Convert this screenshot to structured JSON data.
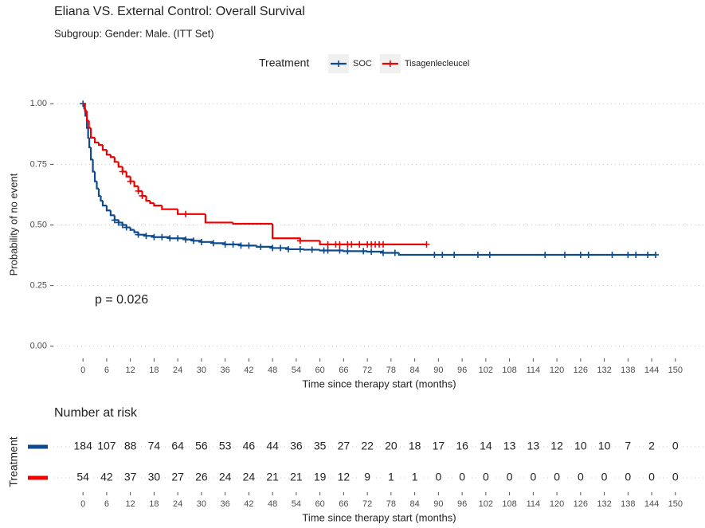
{
  "chart_data": {
    "type": "km",
    "title": "Eliana VS. External Control: Overall Survival",
    "subtitle": "Subgroup: Gender: Male. (ITT Set)",
    "x_label": "Time since therapy start (months)",
    "y_label": "Probability of no event",
    "legend_title": "Treatment",
    "annotation": "p = 0.026",
    "xlim": [
      -7.5,
      157.5
    ],
    "ylim": [
      -0.05,
      1.05
    ],
    "xticks": [
      0,
      6,
      12,
      18,
      24,
      30,
      36,
      42,
      48,
      54,
      60,
      66,
      72,
      78,
      84,
      90,
      96,
      102,
      108,
      114,
      120,
      126,
      132,
      138,
      144,
      150
    ],
    "yticks": [
      {
        "value": 0,
        "label": "0.00"
      },
      {
        "value": 0.25,
        "label": "0.25"
      },
      {
        "value": 0.5,
        "label": "0.50"
      },
      {
        "value": 0.75,
        "label": "0.75"
      },
      {
        "value": 1,
        "label": "1.00"
      }
    ],
    "grid": true,
    "series": [
      {
        "name": "SOC",
        "color": "#0d4a8f",
        "x": [
          0,
          0.3,
          0.6,
          1,
          1.3,
          1.6,
          2,
          2.5,
          3,
          3.5,
          4,
          4.5,
          5,
          6,
          7,
          8,
          9,
          10,
          11,
          12,
          13,
          14,
          16,
          18,
          22,
          26,
          28,
          30,
          33,
          36,
          40,
          44,
          48,
          52,
          56,
          60,
          66,
          72,
          76,
          80
        ],
        "values": [
          1,
          0.98,
          0.95,
          0.9,
          0.86,
          0.82,
          0.77,
          0.72,
          0.68,
          0.65,
          0.62,
          0.6,
          0.58,
          0.56,
          0.54,
          0.52,
          0.51,
          0.5,
          0.49,
          0.48,
          0.47,
          0.46,
          0.455,
          0.45,
          0.445,
          0.44,
          0.435,
          0.43,
          0.425,
          0.42,
          0.415,
          0.41,
          0.405,
          0.4,
          0.398,
          0.395,
          0.392,
          0.39,
          0.385,
          0.377
        ],
        "censor_x": [
          0,
          8,
          9,
          10,
          11,
          14,
          16,
          18,
          20,
          22,
          24,
          26,
          28,
          30,
          33,
          36,
          38,
          40,
          42,
          45,
          48,
          50,
          52,
          55,
          58,
          61,
          62,
          65,
          67,
          71,
          73,
          76,
          79,
          89,
          91,
          94,
          100,
          103,
          117,
          122,
          126,
          128,
          134,
          138,
          140,
          143,
          145
        ]
      },
      {
        "name": "Tisagenlecleucel",
        "color": "#ee0000",
        "x": [
          0,
          0.5,
          1,
          1.5,
          2,
          3,
          4,
          5,
          6,
          7,
          8,
          9,
          10,
          11,
          12,
          13,
          14,
          15,
          16,
          17,
          18,
          20,
          24,
          31,
          38,
          48,
          55,
          60
        ],
        "values": [
          1,
          0.97,
          0.93,
          0.9,
          0.86,
          0.84,
          0.83,
          0.81,
          0.79,
          0.78,
          0.76,
          0.74,
          0.72,
          0.7,
          0.68,
          0.66,
          0.64,
          0.62,
          0.6,
          0.59,
          0.58,
          0.565,
          0.545,
          0.51,
          0.505,
          0.445,
          0.435,
          0.42
        ],
        "censor_x": [
          10,
          12,
          14,
          15,
          26,
          55,
          62,
          64,
          65,
          67,
          68,
          70,
          72,
          73,
          74,
          75,
          76,
          87
        ]
      }
    ]
  },
  "risk_table": {
    "title": "Number at risk",
    "y_label": "Treatment",
    "x_label": "Time since therapy start (months)",
    "xlim": [
      -7.5,
      157.5
    ],
    "xticks": [
      0,
      6,
      12,
      18,
      24,
      30,
      36,
      42,
      48,
      54,
      60,
      66,
      72,
      78,
      84,
      90,
      96,
      102,
      108,
      114,
      120,
      126,
      132,
      138,
      144,
      150
    ],
    "rows": [
      {
        "color": "#0d4a8f",
        "values": [
          184,
          107,
          88,
          74,
          64,
          56,
          53,
          46,
          44,
          36,
          35,
          27,
          22,
          20,
          18,
          17,
          16,
          14,
          13,
          13,
          12,
          10,
          10,
          7,
          2,
          0
        ]
      },
      {
        "color": "#ee0000",
        "values": [
          54,
          42,
          37,
          30,
          27,
          26,
          24,
          24,
          21,
          21,
          19,
          12,
          9,
          1,
          1,
          0,
          0,
          0,
          0,
          0,
          0,
          0,
          0,
          0,
          0,
          0
        ]
      }
    ]
  }
}
